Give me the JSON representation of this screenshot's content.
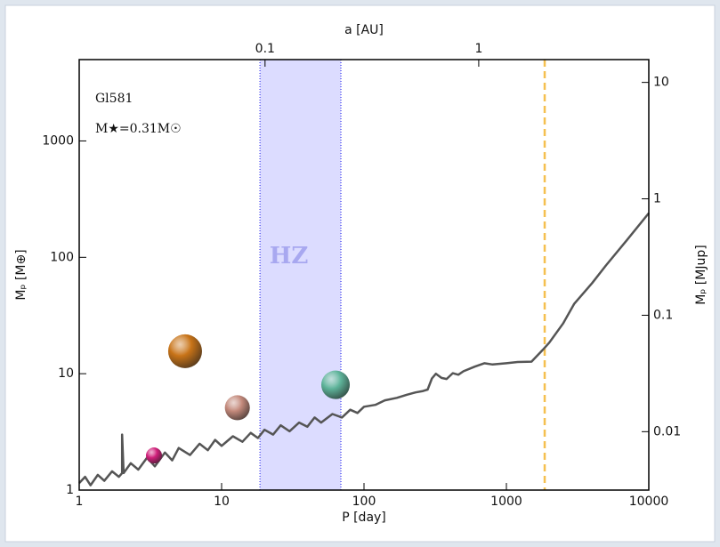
{
  "chart_data": {
    "type": "scatter",
    "xlabel": "P [day]",
    "ylabel": "Mₚ [M⊕]",
    "x2label": "a [AU]",
    "y2label": "Mₚ [MJup]",
    "annotations": [
      "Gl581",
      "M★=0.31M☉"
    ],
    "xlim": [
      1,
      10000
    ],
    "xticks": [
      1,
      10,
      100,
      1000,
      10000
    ],
    "xscale": "log",
    "ylim": [
      1,
      5000
    ],
    "yticks": [
      1,
      10,
      100,
      1000
    ],
    "yscale": "log",
    "x2lim": [
      0.0135,
      6.25
    ],
    "x2ticks": [
      0.1,
      1
    ],
    "y2lim": [
      0.00315,
      15.7
    ],
    "y2ticks": [
      0.01,
      0.1,
      1,
      10
    ],
    "hz": {
      "label": "HZ",
      "range": [
        18.6,
        68.8
      ],
      "color": "#dcdcff",
      "edge": "#5a5af0"
    },
    "vline": {
      "x": 1857,
      "color": "#f5c050"
    },
    "series": [
      {
        "type": "bubble",
        "x": [
          3.35,
          5.54,
          12.9,
          63.1
        ],
        "values": [
          1.98,
          15.6,
          5.1,
          8.03
        ],
        "sizes": [
          9,
          19,
          14,
          16
        ],
        "colors": [
          "#d0207a",
          "#c87418",
          "#c48a7c",
          "#5fb49a"
        ]
      },
      {
        "type": "line",
        "color": "#555555",
        "x": [
          1,
          1.1,
          1.2,
          1.35,
          1.5,
          1.7,
          1.9,
          2,
          2,
          2.05,
          2.3,
          2.6,
          3,
          3.4,
          4,
          4.5,
          5,
          6,
          7,
          8,
          9,
          10,
          12,
          14,
          16,
          18,
          20,
          23,
          26,
          30,
          35,
          40,
          45,
          50,
          60,
          70,
          80,
          90,
          100,
          120,
          140,
          170,
          200,
          230,
          260,
          280,
          300,
          320,
          350,
          380,
          420,
          460,
          500,
          600,
          700,
          800,
          1000,
          1200,
          1500,
          1800,
          2000,
          2500,
          3000,
          4000,
          5000,
          7000,
          10000
        ],
        "values": [
          1.15,
          1.3,
          1.1,
          1.35,
          1.2,
          1.45,
          1.3,
          1.4,
          3.0,
          1.4,
          1.7,
          1.5,
          1.9,
          1.6,
          2.1,
          1.8,
          2.3,
          2.0,
          2.5,
          2.2,
          2.7,
          2.4,
          2.9,
          2.6,
          3.1,
          2.8,
          3.3,
          3.0,
          3.6,
          3.2,
          3.8,
          3.5,
          4.2,
          3.8,
          4.5,
          4.2,
          4.9,
          4.6,
          5.2,
          5.4,
          5.9,
          6.2,
          6.6,
          6.9,
          7.1,
          7.3,
          9.1,
          10.0,
          9.2,
          9.0,
          10.1,
          9.8,
          10.5,
          11.5,
          12.3,
          12.0,
          12.3,
          12.6,
          12.7,
          16,
          18.5,
          27,
          40,
          60,
          85,
          140,
          240
        ]
      }
    ]
  }
}
